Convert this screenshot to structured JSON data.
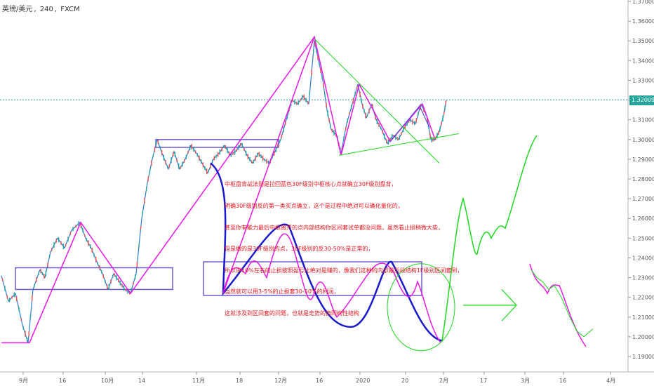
{
  "header": {
    "symbol": "英镑/美元",
    "interval": "240",
    "source": "FXCM"
  },
  "last_price_label": "1.32009",
  "annotation_lines": [
    "中枢盘背战法则是拉回蓝色30F级别中枢核心点就确立30F级别盘背，",
    "明确30F级别反的第一类买点确立，这个是过程中绝对可以确化量化的，",
    "甚至你有能力最后中枢离开的点内部结构你区间套试单都没问题，虽然看止损稍微大些，",
    "但是做的是30F级别的点，30F级别的反30-50%是正常的，",
    "所以讲10%左右的止损按照盈亏比绝对是赚的，像我们这种的内部最后段结构1F级别区间套到，",
    "当然就可以用3-5%的止损套30-50%的利润，",
    "这就涉及到区间套的问题，也就是走势的自同构性结构"
  ],
  "chart_data": {
    "type": "line",
    "title": "",
    "symbol": "GBP/USD 240 FXCM",
    "xlabel": "",
    "ylabel": "",
    "ylim": [
      1.185,
      1.37
    ],
    "y_ticks": [
      "1.37000",
      "1.36000",
      "1.35000",
      "1.34000",
      "1.33000",
      "1.32000",
      "1.31000",
      "1.30000",
      "1.29000",
      "1.28000",
      "1.27000",
      "1.26000",
      "1.25000",
      "1.24000",
      "1.23000",
      "1.22000",
      "1.21000",
      "1.20000",
      "1.19000"
    ],
    "x_ticks": [
      "9月",
      "16",
      "10月",
      "14",
      "11月",
      "18",
      "12月",
      "16",
      "2020",
      "20",
      "2月",
      "17",
      "3月",
      "16",
      "4月"
    ],
    "grid": false,
    "current_price": 1.32009,
    "colors": {
      "price": "#2e7bd6",
      "magenta": "#e61ae6",
      "blue_box": "#6a5acd",
      "green": "#1fd61f",
      "dark_blue": "#1a1acc",
      "tag": "#26a69a",
      "note": "#e8141b"
    },
    "series": [
      {
        "name": "",
        "values": [
          [
            0,
            1.231
          ],
          [
            10,
            1.218
          ],
          [
            20,
            1.222
          ],
          [
            30,
            1.206
          ],
          [
            38,
            1.197
          ],
          [
            45,
            1.224
          ],
          [
            55,
            1.234
          ],
          [
            62,
            1.23
          ],
          [
            70,
            1.243
          ],
          [
            80,
            1.25
          ],
          [
            90,
            1.245
          ],
          [
            100,
            1.254
          ],
          [
            112,
            1.258
          ],
          [
            120,
            1.25
          ],
          [
            128,
            1.245
          ],
          [
            136,
            1.238
          ],
          [
            144,
            1.232
          ],
          [
            152,
            1.224
          ],
          [
            160,
            1.232
          ],
          [
            168,
            1.228
          ],
          [
            176,
            1.224
          ],
          [
            184,
            1.222
          ],
          [
            192,
            1.232
          ],
          [
            200,
            1.26
          ],
          [
            208,
            1.278
          ],
          [
            215,
            1.29
          ],
          [
            222,
            1.3
          ],
          [
            230,
            1.292
          ],
          [
            238,
            1.285
          ],
          [
            246,
            1.294
          ],
          [
            254,
            1.285
          ],
          [
            262,
            1.29
          ],
          [
            270,
            1.297
          ],
          [
            278,
            1.293
          ],
          [
            286,
            1.288
          ],
          [
            294,
            1.283
          ],
          [
            302,
            1.29
          ],
          [
            310,
            1.293
          ],
          [
            318,
            1.297
          ],
          [
            326,
            1.292
          ],
          [
            334,
            1.294
          ],
          [
            342,
            1.298
          ],
          [
            350,
            1.292
          ],
          [
            358,
            1.288
          ],
          [
            366,
            1.293
          ],
          [
            374,
            1.29
          ],
          [
            382,
            1.288
          ],
          [
            390,
            1.294
          ],
          [
            398,
            1.3
          ],
          [
            406,
            1.31
          ],
          [
            414,
            1.32
          ],
          [
            422,
            1.318
          ],
          [
            430,
            1.322
          ],
          [
            438,
            1.318
          ],
          [
            446,
            1.35
          ],
          [
            452,
            1.34
          ],
          [
            458,
            1.33
          ],
          [
            464,
            1.315
          ],
          [
            470,
            1.305
          ],
          [
            478,
            1.302
          ],
          [
            484,
            1.293
          ],
          [
            492,
            1.308
          ],
          [
            500,
            1.318
          ],
          [
            508,
            1.328
          ],
          [
            514,
            1.318
          ],
          [
            520,
            1.311
          ],
          [
            528,
            1.318
          ],
          [
            534,
            1.31
          ],
          [
            542,
            1.305
          ],
          [
            550,
            1.298
          ],
          [
            558,
            1.302
          ],
          [
            566,
            1.3
          ],
          [
            574,
            1.306
          ],
          [
            582,
            1.31
          ],
          [
            590,
            1.308
          ],
          [
            598,
            1.318
          ],
          [
            606,
            1.312
          ],
          [
            612,
            1.3
          ],
          [
            618,
            1.3
          ],
          [
            624,
            1.304
          ],
          [
            630,
            1.312
          ],
          [
            634,
            1.32
          ]
        ]
      },
      {
        "name": "",
        "values": [
          [
            0,
            1.197
          ],
          [
            40,
            1.197
          ],
          [
            113,
            1.258
          ],
          [
            184,
            1.222
          ],
          [
            446,
            1.352
          ],
          [
            484,
            1.292
          ],
          [
            510,
            1.328
          ],
          [
            554,
            1.299
          ],
          [
            600,
            1.318
          ],
          [
            618,
            1.3
          ]
        ]
      }
    ]
  }
}
